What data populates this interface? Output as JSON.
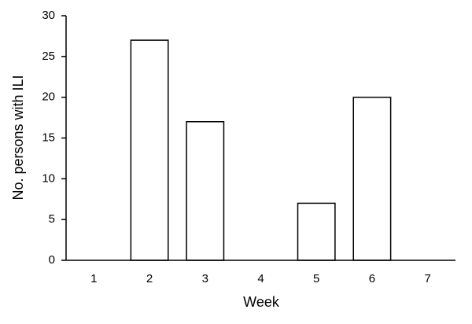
{
  "chart_data": {
    "type": "bar",
    "x_label": "Week",
    "y_label": "No. persons with ILI",
    "categories": [
      "1",
      "2",
      "3",
      "4",
      "5",
      "6",
      "7"
    ],
    "values": [
      0,
      27,
      17,
      0,
      7,
      20,
      0
    ],
    "color": "#ffffff",
    "edgecolor": "#000000",
    "ylim": [
      0,
      30
    ],
    "yticks": [
      0,
      5,
      10,
      15,
      20,
      25,
      30
    ],
    "grid": false
  }
}
